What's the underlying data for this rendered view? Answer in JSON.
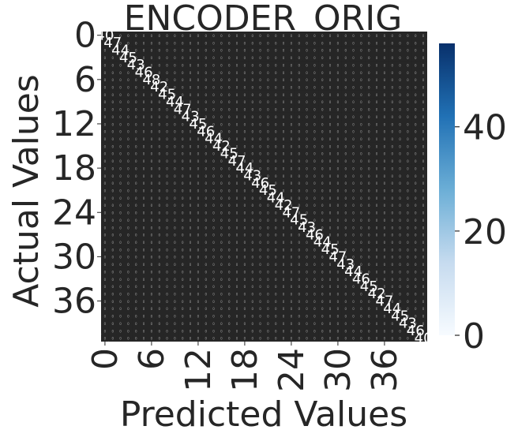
{
  "chart_data": {
    "type": "heatmap",
    "title": "ENCODER_ORIG",
    "xlabel": "Predicted Values",
    "ylabel": "Actual Values",
    "n_classes": 42,
    "x_tick_labels": [
      "0",
      "6",
      "12",
      "18",
      "24",
      "30",
      "36"
    ],
    "y_tick_labels": [
      "0",
      "6",
      "12",
      "18",
      "24",
      "30",
      "36"
    ],
    "tick_values": [
      0,
      6,
      12,
      18,
      24,
      30,
      36
    ],
    "colorbar": {
      "colormap": "Blues",
      "min": 0,
      "max": 56,
      "tick_values": [
        0,
        20,
        40
      ],
      "tick_labels": [
        "0",
        "20",
        "40"
      ],
      "color_low": "#f7fbff",
      "color_mid": "#6baed6",
      "color_high": "#08306b"
    },
    "diagonal_values": [
      40,
      47,
      44,
      45,
      43,
      46,
      48,
      42,
      45,
      44,
      47,
      43,
      45,
      46,
      44,
      42,
      45,
      47,
      44,
      43,
      46,
      45,
      44,
      42,
      47,
      45,
      43,
      46,
      44,
      45,
      47,
      43,
      44,
      46,
      45,
      42,
      47,
      44,
      45,
      43,
      46,
      40
    ],
    "off_diagonal_value": 0,
    "annotation_color": "#ffffff",
    "cell_color": "#262626"
  }
}
